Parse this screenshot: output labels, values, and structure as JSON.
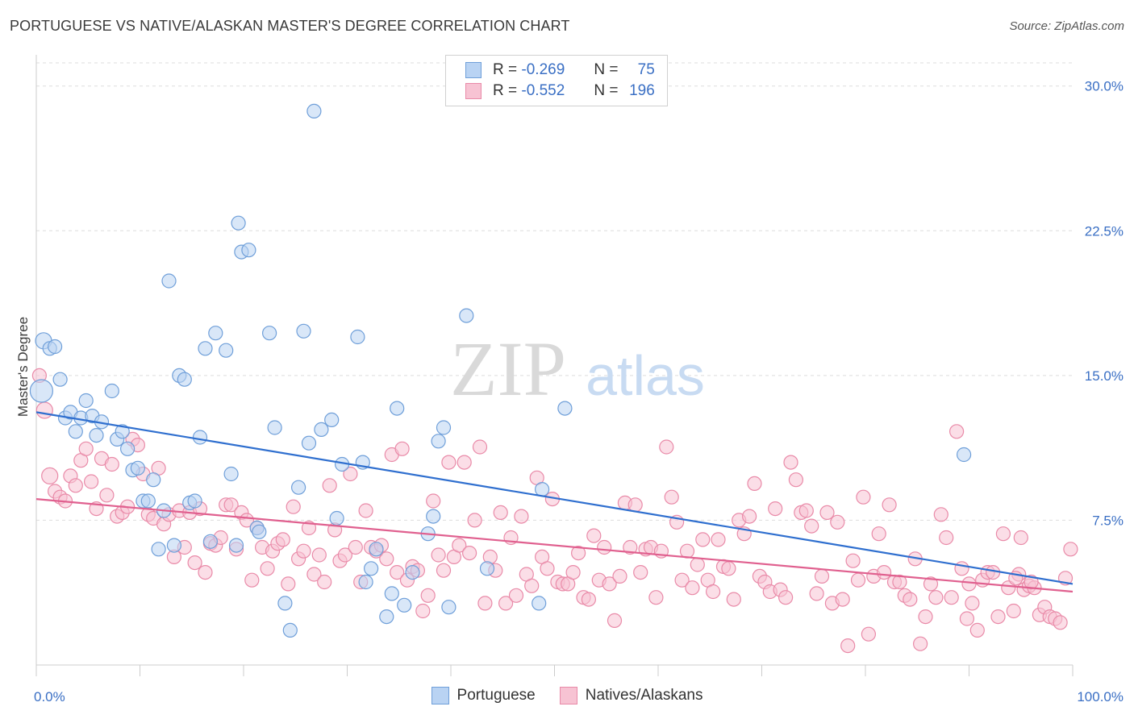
{
  "title": "PORTUGUESE VS NATIVE/ALASKAN MASTER'S DEGREE CORRELATION CHART",
  "source": "Source: ZipAtlas.com",
  "watermark": {
    "zip": "ZIP",
    "atlas": "atlas"
  },
  "colors": {
    "portuguese_fill": "#b9d3f3",
    "portuguese_stroke": "#6f9fd9",
    "portuguese_line": "#2f6fcf",
    "natives_fill": "#f7c3d3",
    "natives_stroke": "#e98aa8",
    "natives_line": "#e0608f",
    "grid": "#dddddd",
    "axis_text": "#3a6fc4"
  },
  "legend": {
    "rows": [
      {
        "r_label": "R =",
        "r_value": "-0.269",
        "n_label": "N =",
        "n_value": "75"
      },
      {
        "r_label": "R =",
        "r_value": "-0.552",
        "n_label": "N =",
        "n_value": "196"
      }
    ]
  },
  "bottom_legend": [
    "Portuguese",
    "Natives/Alaskans"
  ],
  "chart_data": {
    "type": "scatter",
    "ylabel": "Master's Degree",
    "x_tick_labels": [
      "0.0%",
      "100.0%"
    ],
    "y_tick_labels": [
      "7.5%",
      "15.0%",
      "22.5%",
      "30.0%"
    ],
    "xlim": [
      0,
      100
    ],
    "ylim": [
      0,
      30
    ],
    "y_ticks": [
      7.5,
      15.0,
      22.5,
      30.0
    ],
    "grid": true,
    "legend_position": "top-center",
    "series": [
      {
        "name": "Portuguese",
        "trend": {
          "x": [
            0,
            100
          ],
          "y": [
            13.1,
            4.2
          ]
        },
        "points": [
          [
            0.5,
            14.2
          ],
          [
            0.7,
            16.8
          ],
          [
            1.3,
            16.4
          ],
          [
            1.8,
            16.5
          ],
          [
            2.3,
            14.8
          ],
          [
            2.8,
            12.8
          ],
          [
            3.3,
            13.1
          ],
          [
            3.8,
            12.1
          ],
          [
            4.3,
            12.8
          ],
          [
            4.8,
            13.7
          ],
          [
            5.4,
            12.9
          ],
          [
            5.8,
            11.9
          ],
          [
            6.3,
            12.6
          ],
          [
            7.3,
            14.2
          ],
          [
            7.8,
            11.7
          ],
          [
            8.3,
            12.1
          ],
          [
            8.8,
            11.2
          ],
          [
            9.3,
            10.1
          ],
          [
            9.8,
            10.2
          ],
          [
            10.3,
            8.5
          ],
          [
            10.8,
            8.5
          ],
          [
            11.3,
            9.6
          ],
          [
            11.8,
            6.0
          ],
          [
            12.3,
            8.0
          ],
          [
            12.8,
            19.9
          ],
          [
            13.3,
            6.2
          ],
          [
            13.8,
            15.0
          ],
          [
            14.3,
            14.8
          ],
          [
            14.8,
            8.4
          ],
          [
            15.3,
            8.5
          ],
          [
            15.8,
            11.8
          ],
          [
            16.3,
            16.4
          ],
          [
            16.8,
            6.4
          ],
          [
            17.3,
            17.2
          ],
          [
            18.3,
            16.3
          ],
          [
            18.8,
            9.9
          ],
          [
            19.3,
            6.2
          ],
          [
            19.5,
            22.9
          ],
          [
            19.8,
            21.4
          ],
          [
            20.5,
            21.5
          ],
          [
            21.3,
            7.1
          ],
          [
            21.5,
            6.9
          ],
          [
            22.5,
            17.2
          ],
          [
            23.0,
            12.3
          ],
          [
            24.0,
            3.2
          ],
          [
            24.5,
            1.8
          ],
          [
            25.3,
            9.2
          ],
          [
            25.8,
            17.3
          ],
          [
            26.3,
            11.5
          ],
          [
            26.8,
            28.7
          ],
          [
            27.5,
            12.2
          ],
          [
            28.5,
            12.7
          ],
          [
            29.0,
            7.6
          ],
          [
            29.5,
            10.4
          ],
          [
            31.0,
            17.0
          ],
          [
            31.5,
            10.5
          ],
          [
            31.8,
            4.3
          ],
          [
            32.3,
            5.0
          ],
          [
            32.8,
            6.0
          ],
          [
            33.8,
            2.5
          ],
          [
            34.3,
            3.7
          ],
          [
            34.8,
            13.3
          ],
          [
            35.5,
            3.1
          ],
          [
            36.3,
            4.8
          ],
          [
            37.8,
            6.8
          ],
          [
            38.3,
            7.7
          ],
          [
            38.8,
            11.6
          ],
          [
            39.3,
            12.3
          ],
          [
            39.8,
            3.0
          ],
          [
            41.5,
            18.1
          ],
          [
            43.5,
            5.0
          ],
          [
            48.5,
            3.2
          ],
          [
            48.8,
            9.1
          ],
          [
            51.0,
            13.3
          ],
          [
            89.5,
            10.9
          ]
        ]
      },
      {
        "name": "Natives/Alaskans",
        "trend": {
          "x": [
            0,
            100
          ],
          "y": [
            8.6,
            3.8
          ]
        },
        "points": [
          [
            0.3,
            15.0
          ],
          [
            0.8,
            13.2
          ],
          [
            1.3,
            9.8
          ],
          [
            1.8,
            9.0
          ],
          [
            2.3,
            8.7
          ],
          [
            2.8,
            8.5
          ],
          [
            3.3,
            9.8
          ],
          [
            3.8,
            9.3
          ],
          [
            4.3,
            10.6
          ],
          [
            4.8,
            11.2
          ],
          [
            5.3,
            9.5
          ],
          [
            5.8,
            8.1
          ],
          [
            6.3,
            10.7
          ],
          [
            6.8,
            8.8
          ],
          [
            7.3,
            10.4
          ],
          [
            7.8,
            7.7
          ],
          [
            8.3,
            7.9
          ],
          [
            8.8,
            8.2
          ],
          [
            9.3,
            11.7
          ],
          [
            9.8,
            11.4
          ],
          [
            10.3,
            9.9
          ],
          [
            10.8,
            7.8
          ],
          [
            11.3,
            7.6
          ],
          [
            11.8,
            10.2
          ],
          [
            12.3,
            7.3
          ],
          [
            12.8,
            7.8
          ],
          [
            13.3,
            5.6
          ],
          [
            13.8,
            8.0
          ],
          [
            14.3,
            6.1
          ],
          [
            14.8,
            7.9
          ],
          [
            15.3,
            5.3
          ],
          [
            15.8,
            8.1
          ],
          [
            16.3,
            4.8
          ],
          [
            16.8,
            6.3
          ],
          [
            17.3,
            6.2
          ],
          [
            17.8,
            6.6
          ],
          [
            18.3,
            8.3
          ],
          [
            18.8,
            8.3
          ],
          [
            19.3,
            6.0
          ],
          [
            19.8,
            7.9
          ],
          [
            20.3,
            7.5
          ],
          [
            20.8,
            4.4
          ],
          [
            21.3,
            7.1
          ],
          [
            21.8,
            6.1
          ],
          [
            22.3,
            5.0
          ],
          [
            22.8,
            5.9
          ],
          [
            23.3,
            6.3
          ],
          [
            23.8,
            6.5
          ],
          [
            24.3,
            4.2
          ],
          [
            24.8,
            8.2
          ],
          [
            25.3,
            5.5
          ],
          [
            25.8,
            5.9
          ],
          [
            26.3,
            7.1
          ],
          [
            26.8,
            4.7
          ],
          [
            27.3,
            5.7
          ],
          [
            27.8,
            4.3
          ],
          [
            28.3,
            9.3
          ],
          [
            28.8,
            7.0
          ],
          [
            29.3,
            5.4
          ],
          [
            29.8,
            5.7
          ],
          [
            30.3,
            9.9
          ],
          [
            30.8,
            6.1
          ],
          [
            31.3,
            4.3
          ],
          [
            31.8,
            8.0
          ],
          [
            32.3,
            6.1
          ],
          [
            32.8,
            5.9
          ],
          [
            33.3,
            6.2
          ],
          [
            33.8,
            5.5
          ],
          [
            34.3,
            10.9
          ],
          [
            34.8,
            4.8
          ],
          [
            35.3,
            11.2
          ],
          [
            35.8,
            4.4
          ],
          [
            36.3,
            5.1
          ],
          [
            36.8,
            4.9
          ],
          [
            37.3,
            2.8
          ],
          [
            37.8,
            3.6
          ],
          [
            38.3,
            8.5
          ],
          [
            38.8,
            5.7
          ],
          [
            39.3,
            4.9
          ],
          [
            39.8,
            10.5
          ],
          [
            40.3,
            5.6
          ],
          [
            40.8,
            6.2
          ],
          [
            41.3,
            10.5
          ],
          [
            41.8,
            5.8
          ],
          [
            42.3,
            7.5
          ],
          [
            42.8,
            11.3
          ],
          [
            43.3,
            3.2
          ],
          [
            43.8,
            5.6
          ],
          [
            44.3,
            4.9
          ],
          [
            44.8,
            7.9
          ],
          [
            45.3,
            3.2
          ],
          [
            45.8,
            6.6
          ],
          [
            46.3,
            3.6
          ],
          [
            46.8,
            7.7
          ],
          [
            47.3,
            4.7
          ],
          [
            47.8,
            4.1
          ],
          [
            48.3,
            9.7
          ],
          [
            48.8,
            5.6
          ],
          [
            49.3,
            5.0
          ],
          [
            49.8,
            8.6
          ],
          [
            50.3,
            4.3
          ],
          [
            50.8,
            4.2
          ],
          [
            51.3,
            4.2
          ],
          [
            51.8,
            4.8
          ],
          [
            52.3,
            5.8
          ],
          [
            52.8,
            3.5
          ],
          [
            53.3,
            3.4
          ],
          [
            53.8,
            6.7
          ],
          [
            54.3,
            4.4
          ],
          [
            54.8,
            6.1
          ],
          [
            55.3,
            4.2
          ],
          [
            55.8,
            2.3
          ],
          [
            56.3,
            4.6
          ],
          [
            56.8,
            8.4
          ],
          [
            57.3,
            6.1
          ],
          [
            57.8,
            8.3
          ],
          [
            58.3,
            4.8
          ],
          [
            58.8,
            6.0
          ],
          [
            59.3,
            6.1
          ],
          [
            59.8,
            3.5
          ],
          [
            60.3,
            5.9
          ],
          [
            60.8,
            11.3
          ],
          [
            61.3,
            8.7
          ],
          [
            61.8,
            7.4
          ],
          [
            62.3,
            4.4
          ],
          [
            62.8,
            5.9
          ],
          [
            63.3,
            4.0
          ],
          [
            63.8,
            5.2
          ],
          [
            64.3,
            6.5
          ],
          [
            64.8,
            4.4
          ],
          [
            65.3,
            3.8
          ],
          [
            65.8,
            6.5
          ],
          [
            66.3,
            5.1
          ],
          [
            66.8,
            5.0
          ],
          [
            67.3,
            3.4
          ],
          [
            67.8,
            7.5
          ],
          [
            68.3,
            6.8
          ],
          [
            68.8,
            7.7
          ],
          [
            69.3,
            9.4
          ],
          [
            69.8,
            4.6
          ],
          [
            70.3,
            4.3
          ],
          [
            70.8,
            3.8
          ],
          [
            71.3,
            8.1
          ],
          [
            71.8,
            3.9
          ],
          [
            72.3,
            3.5
          ],
          [
            72.8,
            10.5
          ],
          [
            73.3,
            9.6
          ],
          [
            73.8,
            7.9
          ],
          [
            74.3,
            8.0
          ],
          [
            74.8,
            7.2
          ],
          [
            75.3,
            3.7
          ],
          [
            75.8,
            4.6
          ],
          [
            76.3,
            7.9
          ],
          [
            76.8,
            3.2
          ],
          [
            77.3,
            7.4
          ],
          [
            77.8,
            3.4
          ],
          [
            78.3,
            1.0
          ],
          [
            78.8,
            5.4
          ],
          [
            79.3,
            4.4
          ],
          [
            79.8,
            8.7
          ],
          [
            80.3,
            1.6
          ],
          [
            80.8,
            4.6
          ],
          [
            81.3,
            6.8
          ],
          [
            81.8,
            4.8
          ],
          [
            82.3,
            8.3
          ],
          [
            82.8,
            4.3
          ],
          [
            83.3,
            4.3
          ],
          [
            83.8,
            3.6
          ],
          [
            84.3,
            3.4
          ],
          [
            84.8,
            5.5
          ],
          [
            85.3,
            1.1
          ],
          [
            85.8,
            2.5
          ],
          [
            86.3,
            4.2
          ],
          [
            86.8,
            3.5
          ],
          [
            87.3,
            7.8
          ],
          [
            87.8,
            6.6
          ],
          [
            88.3,
            3.5
          ],
          [
            88.8,
            12.1
          ],
          [
            89.3,
            5.0
          ],
          [
            89.8,
            2.4
          ],
          [
            90.3,
            3.2
          ],
          [
            90.8,
            1.8
          ],
          [
            91.3,
            4.4
          ],
          [
            91.8,
            4.8
          ],
          [
            92.3,
            4.8
          ],
          [
            92.8,
            2.5
          ],
          [
            93.3,
            6.8
          ],
          [
            93.8,
            4.0
          ],
          [
            94.3,
            2.8
          ],
          [
            94.8,
            4.7
          ],
          [
            95.3,
            3.9
          ],
          [
            95.8,
            4.1
          ],
          [
            96.3,
            4.0
          ],
          [
            96.8,
            2.6
          ],
          [
            97.3,
            3.0
          ],
          [
            97.8,
            2.5
          ],
          [
            98.3,
            2.4
          ],
          [
            98.8,
            2.2
          ],
          [
            99.3,
            4.5
          ],
          [
            99.8,
            6.0
          ],
          [
            96.0,
            4.3
          ],
          [
            95.0,
            6.6
          ],
          [
            94.5,
            4.5
          ],
          [
            90.0,
            4.2
          ]
        ]
      }
    ]
  }
}
